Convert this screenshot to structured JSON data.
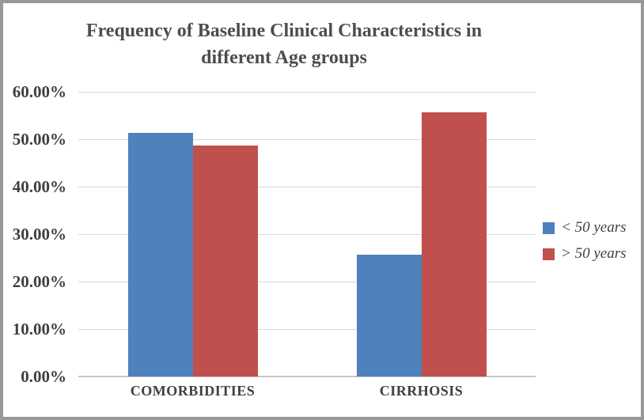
{
  "chart_data": {
    "type": "bar",
    "title": "Frequency of Baseline Clinical Characteristics in different Age groups",
    "title_lines": [
      "Frequency of Baseline Clinical Characteristics in",
      "different Age groups"
    ],
    "categories": [
      "COMORBIDITIES",
      "CIRRHOSIS"
    ],
    "series": [
      {
        "name": "< 50 years",
        "color": "#4f81bd",
        "values": [
          51.4,
          25.7
        ]
      },
      {
        "name": "> 50 years",
        "color": "#c0504d",
        "values": [
          48.6,
          55.6
        ]
      }
    ],
    "xlabel": "",
    "ylabel": "",
    "ylim": [
      0,
      60
    ],
    "ytick_step": 10,
    "ytick_labels": [
      "0.00%",
      "10.00%",
      "20.00%",
      "30.00%",
      "40.00%",
      "50.00%",
      "60.00%"
    ],
    "grid": true,
    "legend_position": "right",
    "legend_entries": [
      "< 50 years",
      "> 50 years"
    ]
  },
  "colors": {
    "frame_border": "#989898",
    "background": "#ffffff",
    "gridline": "#d8d8d8",
    "axis_line": "#c6c6c6",
    "title_text": "#4d4d4d",
    "label_text": "#3f3f3f",
    "series_blue": "#4f81bd",
    "series_red": "#c0504d"
  }
}
